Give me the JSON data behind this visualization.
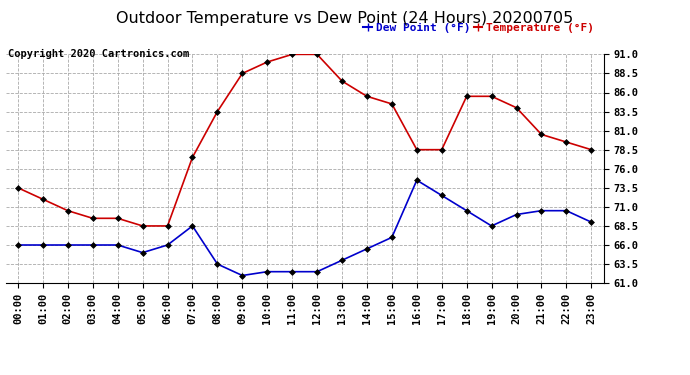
{
  "title": "Outdoor Temperature vs Dew Point (24 Hours) 20200705",
  "copyright": "Copyright 2020 Cartronics.com",
  "x_labels": [
    "00:00",
    "01:00",
    "02:00",
    "03:00",
    "04:00",
    "05:00",
    "06:00",
    "07:00",
    "08:00",
    "09:00",
    "10:00",
    "11:00",
    "12:00",
    "13:00",
    "14:00",
    "15:00",
    "16:00",
    "17:00",
    "18:00",
    "19:00",
    "20:00",
    "21:00",
    "22:00",
    "23:00"
  ],
  "temperature": [
    73.5,
    72.0,
    70.5,
    69.5,
    69.5,
    68.5,
    68.5,
    77.5,
    83.5,
    88.5,
    90.0,
    91.0,
    91.0,
    87.5,
    85.5,
    84.5,
    78.5,
    78.5,
    85.5,
    85.5,
    84.0,
    80.5,
    79.5,
    78.5
  ],
  "dew_point": [
    66.0,
    66.0,
    66.0,
    66.0,
    66.0,
    65.0,
    66.0,
    68.5,
    63.5,
    62.0,
    62.5,
    62.5,
    62.5,
    64.0,
    65.5,
    67.0,
    74.5,
    72.5,
    70.5,
    68.5,
    70.0,
    70.5,
    70.5,
    69.0
  ],
  "temp_color": "#cc0000",
  "dew_color": "#0000cc",
  "ylim_min": 61.0,
  "ylim_max": 91.0,
  "yticks": [
    61.0,
    63.5,
    66.0,
    68.5,
    71.0,
    73.5,
    76.0,
    78.5,
    81.0,
    83.5,
    86.0,
    88.5,
    91.0
  ],
  "legend_dew": "Dew Point (°F)",
  "legend_temp": "Temperature (°F)",
  "bg_color": "#ffffff",
  "grid_color": "#aaaaaa",
  "title_fontsize": 11.5,
  "tick_fontsize": 7.5,
  "copyright_fontsize": 7.5,
  "legend_fontsize": 8.0,
  "marker": "D",
  "marker_size": 3.0,
  "line_width": 1.2
}
